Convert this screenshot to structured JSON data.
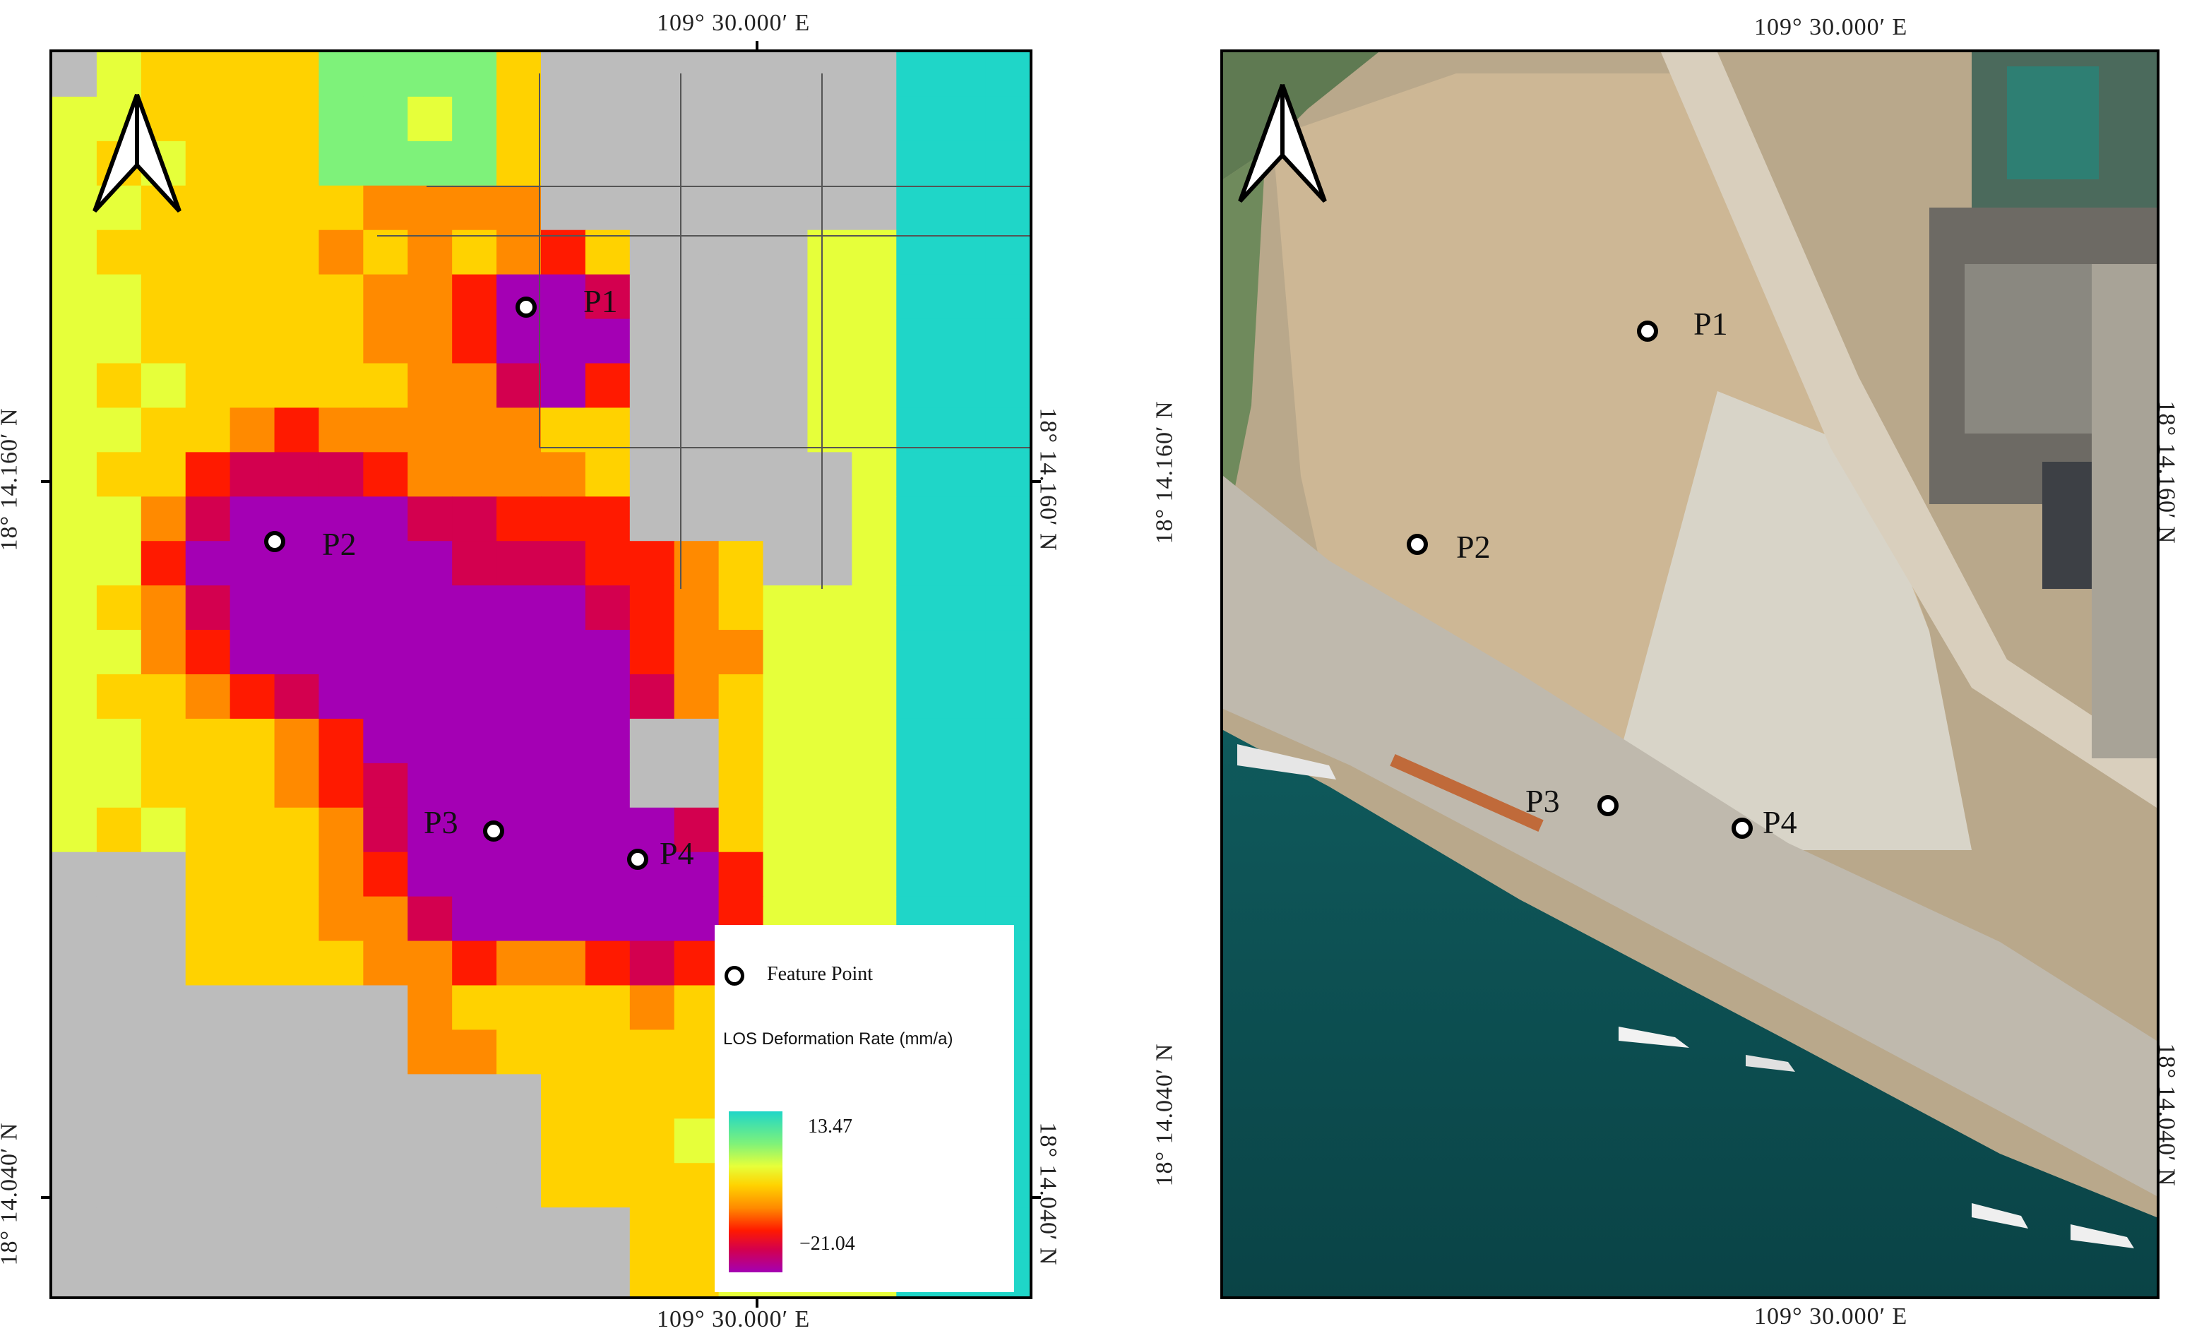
{
  "coords": {
    "lon_top_left": "109° 30.000′ E",
    "lon_bottom_left": "109° 30.000′ E",
    "lon_top_right": "109° 30.000′ E",
    "lon_bottom_right": "109° 30.000′ E",
    "lat_upper_left_outer": "18° 14.160′ N",
    "lat_upper_left_inner": "18° 14.160′ N",
    "lat_lower_left_outer": "18° 14.040′ N",
    "lat_lower_left_inner": "18° 14.040′ N",
    "lat_upper_right_outer": "18° 14.160′ N",
    "lat_upper_right_inner": "18° 14.160′ N",
    "lat_lower_right_outer": "18° 14.040′ N",
    "lat_lower_right_inner": "18° 14.040′ N"
  },
  "points": {
    "p1": "P1",
    "p2": "P2",
    "p3": "P3",
    "p4": "P4"
  },
  "legend": {
    "feature_point": "Feature Point",
    "title": "LOS Deformation Rate (mm/a)",
    "max": "13.47",
    "min": "−21.04"
  },
  "colors": {
    "no_data": "#bcbcbc",
    "ramp": [
      "#1fd6c8",
      "#7ef27a",
      "#e6ff3a",
      "#ffd200",
      "#ff8a00",
      "#ff1a00",
      "#d3004f",
      "#a400b4"
    ],
    "sea": "#0d4f52",
    "land": "#c9b597"
  },
  "icons": {
    "north_arrow": "north-arrow-icon",
    "feature_point": "feature-point-icon"
  }
}
